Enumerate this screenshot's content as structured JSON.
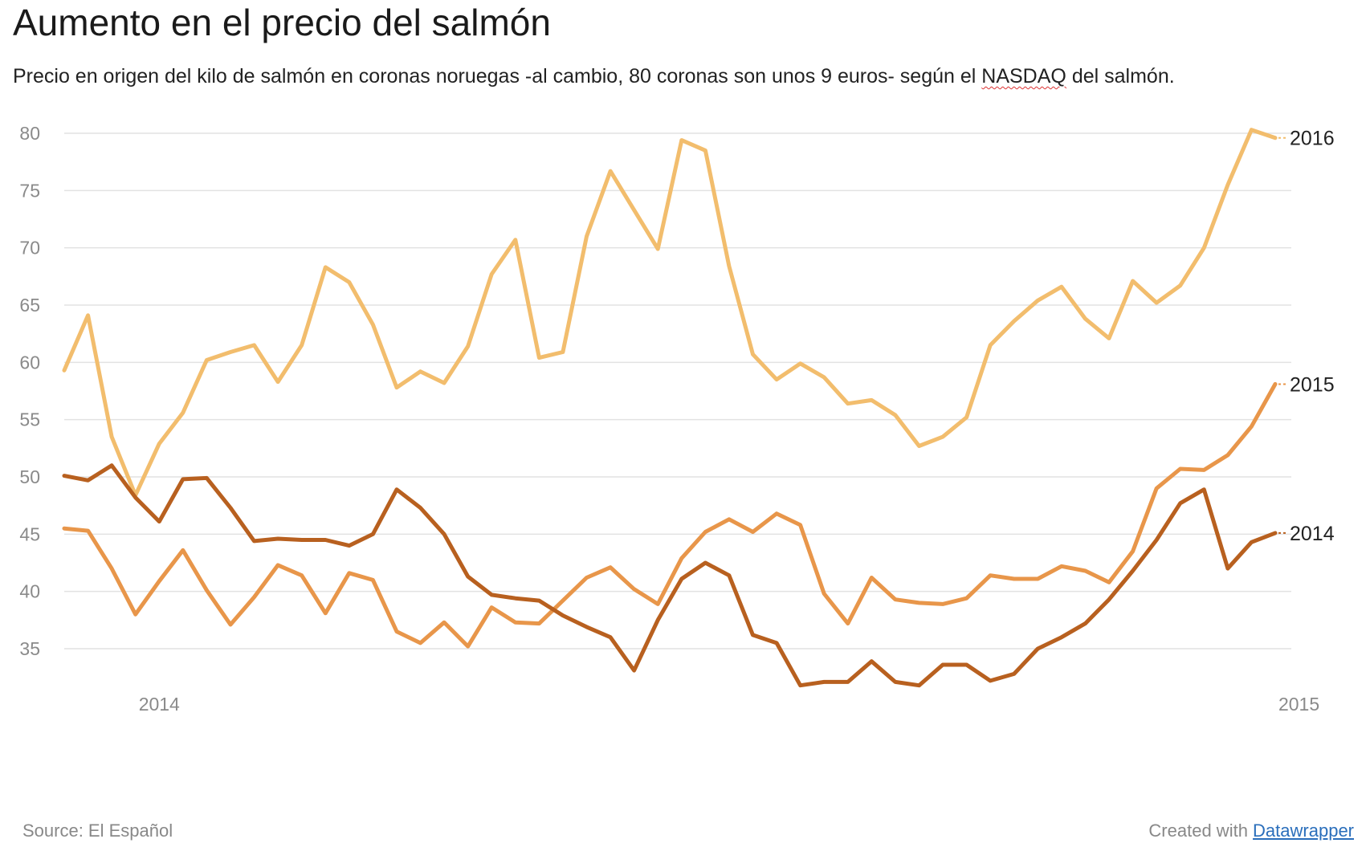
{
  "title": "Aumento en el precio del salmón",
  "subtitle": {
    "before": "Precio en origen del kilo de salmón en coronas noruegas -al cambio, 80 coronas son unos 9 euros- según el ",
    "highlight": "NASDAQ",
    "after": " del salmón."
  },
  "footer": {
    "source": "Source: El Español",
    "created_prefix": "Created with ",
    "created_link": "Datawrapper"
  },
  "chart_data": {
    "type": "line",
    "y_ticks": [
      "35",
      "40",
      "45",
      "50",
      "55",
      "60",
      "65",
      "70",
      "75",
      "80"
    ],
    "ylim": [
      31,
      82
    ],
    "x_ticks": [
      {
        "label": "2014",
        "week": 5
      },
      {
        "label": "2015",
        "week": 53
      }
    ],
    "xlim": [
      1,
      53
    ],
    "grid": true,
    "legend": "inline-right",
    "series": [
      {
        "name": "2016",
        "color": "#f2bd6d",
        "values": [
          59.3,
          64.1,
          53.5,
          48.4,
          52.9,
          55.6,
          60.2,
          60.9,
          61.5,
          58.3,
          61.5,
          68.3,
          67.0,
          63.3,
          57.8,
          59.2,
          58.2,
          61.4,
          67.7,
          70.7,
          60.4,
          60.9,
          71.0,
          76.7,
          73.3,
          69.9,
          79.4,
          78.5,
          68.4,
          60.7,
          58.5,
          59.9,
          58.7,
          56.4,
          56.7,
          55.4,
          52.7,
          53.5,
          55.2,
          61.5,
          63.6,
          65.4,
          66.6,
          63.8,
          62.1,
          67.1,
          65.2,
          66.7,
          70.0,
          75.5,
          80.3,
          79.6
        ]
      },
      {
        "name": "2015",
        "color": "#e8964a",
        "values": [
          45.5,
          45.3,
          42.0,
          38.0,
          40.9,
          43.6,
          40.1,
          37.1,
          39.5,
          42.3,
          41.4,
          38.1,
          41.6,
          41.0,
          36.5,
          35.5,
          37.3,
          35.2,
          38.6,
          37.3,
          37.2,
          39.2,
          41.2,
          42.1,
          40.2,
          38.9,
          42.9,
          45.2,
          46.3,
          45.2,
          46.8,
          45.8,
          39.8,
          37.2,
          41.2,
          39.3,
          39.0,
          38.9,
          39.4,
          41.4,
          41.1,
          41.1,
          42.2,
          41.8,
          40.8,
          43.5,
          49.0,
          50.7,
          50.6,
          51.9,
          54.4,
          58.1
        ]
      },
      {
        "name": "2014",
        "color": "#b8601f",
        "values": [
          50.1,
          49.7,
          51.0,
          48.2,
          46.1,
          49.8,
          49.9,
          47.3,
          44.4,
          44.6,
          44.5,
          44.5,
          44.0,
          45.0,
          48.9,
          47.3,
          45.0,
          41.3,
          39.7,
          39.4,
          39.2,
          37.9,
          36.9,
          36.0,
          33.1,
          37.5,
          41.1,
          42.5,
          41.4,
          36.2,
          35.5,
          31.8,
          32.1,
          32.1,
          33.9,
          32.1,
          31.8,
          33.6,
          33.6,
          32.2,
          32.8,
          35.0,
          36.0,
          37.2,
          39.3,
          41.8,
          44.5,
          47.7,
          48.9,
          42.0,
          44.3,
          45.1
        ]
      }
    ]
  }
}
